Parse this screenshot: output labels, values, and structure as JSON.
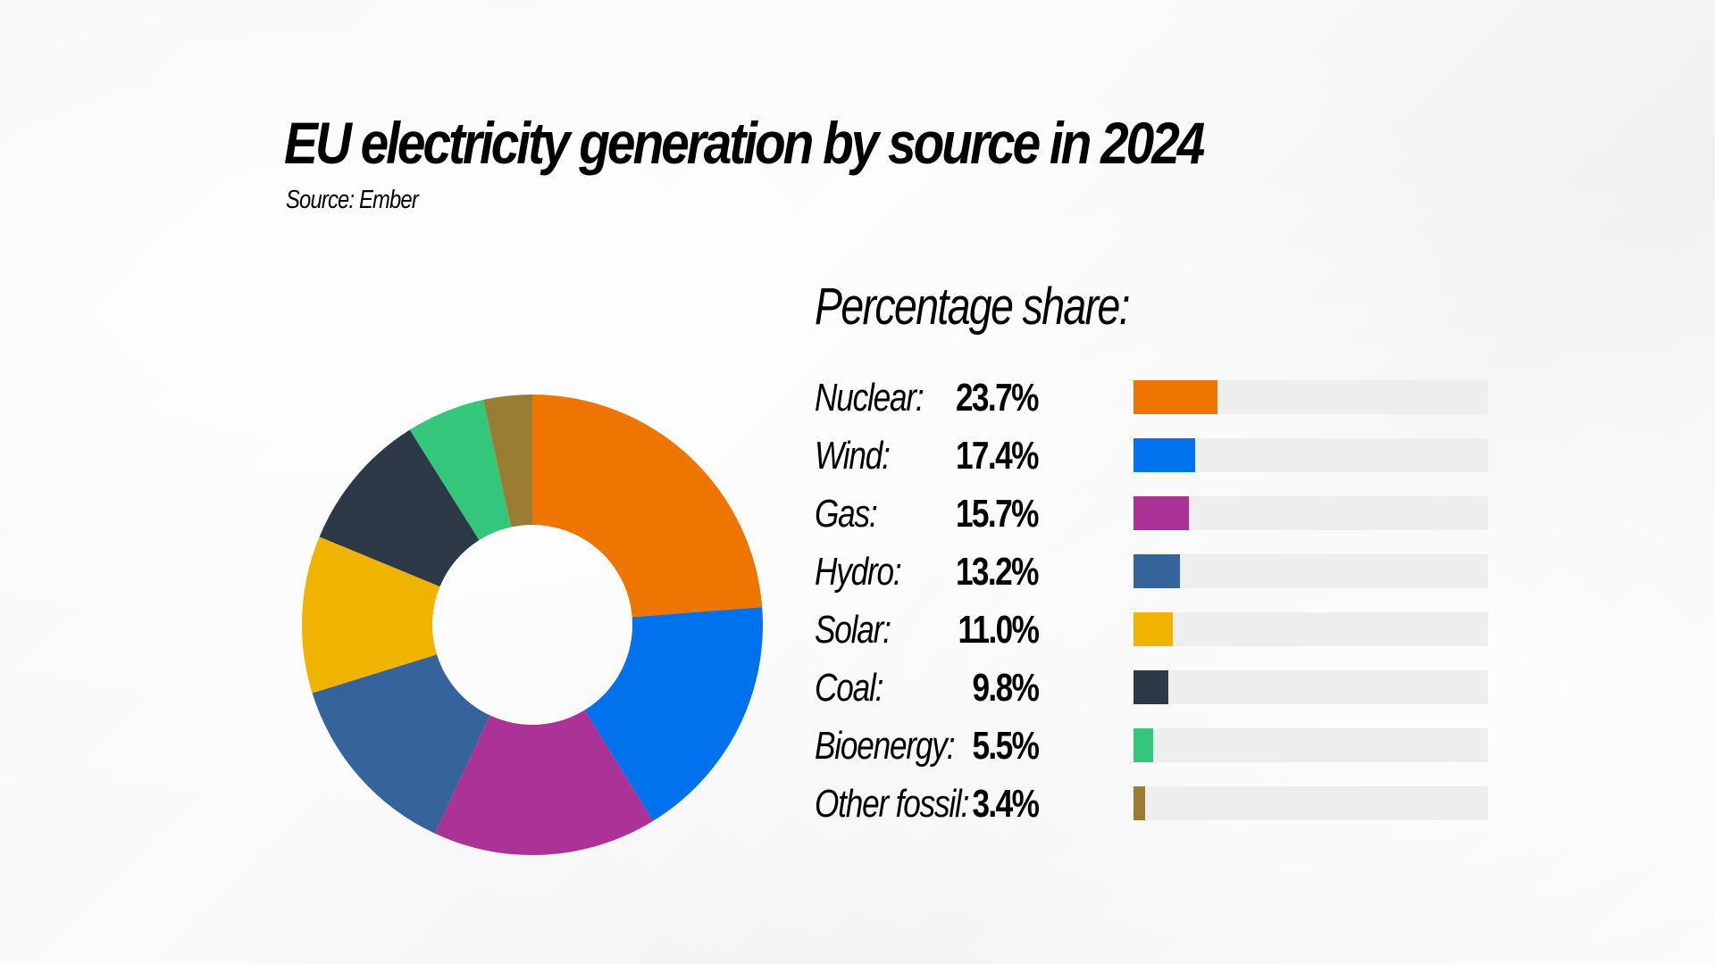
{
  "header": {
    "title": "EU electricity generation by source in 2024",
    "source": "Source: Ember"
  },
  "panel": {
    "heading": "Percentage share:",
    "scale_max_percent": 100
  },
  "chart_data": {
    "type": "pie",
    "title": "EU electricity generation by source in 2024",
    "subtitle": "Source: Ember",
    "donut": true,
    "legend_placement": "right",
    "series": [
      {
        "name": "Nuclear:",
        "value": 23.7,
        "label": "23.7%",
        "color": "#ee7600"
      },
      {
        "name": "Wind:",
        "value": 17.4,
        "label": "17.4%",
        "color": "#0072ee"
      },
      {
        "name": "Gas:",
        "value": 15.7,
        "label": "15.7%",
        "color": "#ab3397"
      },
      {
        "name": "Hydro:",
        "value": 13.2,
        "label": "13.2%",
        "color": "#34649b"
      },
      {
        "name": "Solar:",
        "value": 11.0,
        "label": "11.0%",
        "color": "#f0b400"
      },
      {
        "name": "Coal:",
        "value": 9.8,
        "label": "9.8%",
        "color": "#2d3946"
      },
      {
        "name": "Bioenergy:",
        "value": 5.5,
        "label": "5.5%",
        "color": "#33c77c"
      },
      {
        "name": "Other fossil:",
        "value": 3.4,
        "label": "3.4%",
        "color": "#9b7c33"
      }
    ]
  }
}
